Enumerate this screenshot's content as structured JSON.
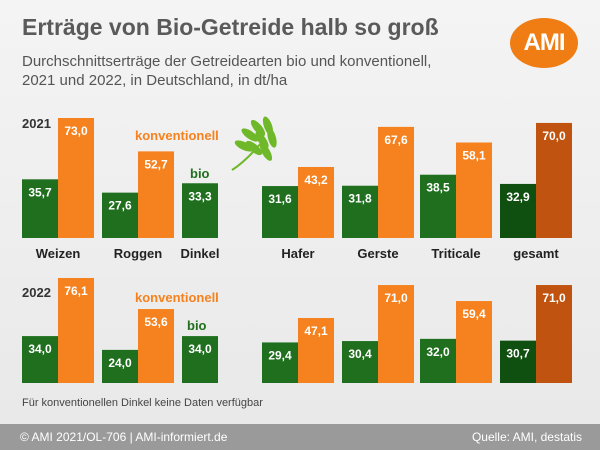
{
  "header": {
    "title": "Erträge von Bio-Getreide halb so groß",
    "subtitle": "Durchschnittserträge der Getreidearten bio und konventionell, 2021 und 2022, in Deutschland, in dt/ha",
    "logo_text": "AMI"
  },
  "legend": {
    "conventional": "konventionell",
    "bio": "bio"
  },
  "colors": {
    "bio": "#1f6f1f",
    "conventional": "#f5821f",
    "bio_total": "#0f4f0f",
    "conventional_total": "#c0530f",
    "leaf": "#6fb82a"
  },
  "note": "Für konventionellen Dinkel keine Daten verfügbar",
  "footer": {
    "left": "© AMI 2021/OL-706 | AMI-informiert.de",
    "right": "Quelle: AMI, destatis"
  },
  "chart_data": {
    "type": "bar",
    "unit": "dt/ha",
    "categories": [
      "Weizen",
      "Roggen",
      "Dinkel",
      "Hafer",
      "Gerste",
      "Triticale",
      "gesamt"
    ],
    "panels": [
      {
        "year": "2021",
        "series": [
          {
            "name": "bio",
            "values": [
              35.7,
              27.6,
              33.3,
              31.6,
              31.8,
              38.5,
              32.9
            ],
            "labels": [
              "35,7",
              "27,6",
              "33,3",
              "31,6",
              "31,8",
              "38,5",
              "32,9"
            ]
          },
          {
            "name": "konventionell",
            "values": [
              73.0,
              52.7,
              null,
              43.2,
              67.6,
              58.1,
              70.0
            ],
            "labels": [
              "73,0",
              "52,7",
              "",
              "43,2",
              "67,6",
              "58,1",
              "70,0"
            ]
          }
        ]
      },
      {
        "year": "2022",
        "series": [
          {
            "name": "bio",
            "values": [
              34.0,
              24.0,
              34.0,
              29.4,
              30.4,
              32.0,
              30.7
            ],
            "labels": [
              "34,0",
              "24,0",
              "34,0",
              "29,4",
              "30,4",
              "32,0",
              "30,7"
            ]
          },
          {
            "name": "konventionell",
            "values": [
              76.1,
              53.6,
              null,
              47.1,
              71.0,
              59.4,
              71.0
            ],
            "labels": [
              "76,1",
              "53,6",
              "",
              "47,1",
              "71,0",
              "59,4",
              "71,0"
            ]
          }
        ]
      }
    ]
  }
}
